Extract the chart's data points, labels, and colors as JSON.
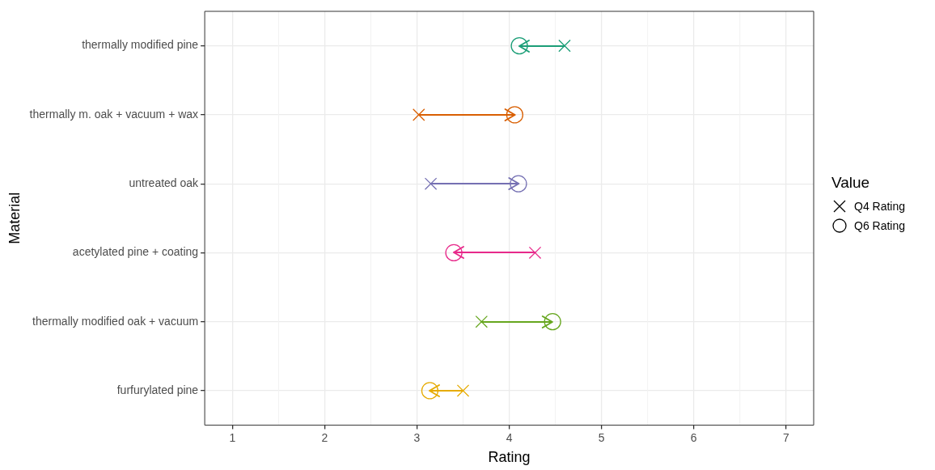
{
  "chart_data": {
    "type": "scatter",
    "orientation": "horizontal",
    "xlabel": "Rating",
    "ylabel": "Material",
    "legend_title": "Value",
    "legend": "right",
    "grid": true,
    "categories": [
      "thermally modified pine",
      "thermally m. oak + vacuum + wax",
      "untreated oak",
      "acetylated pine + coating",
      "thermally modified oak + vacuum",
      "furfurylated pine"
    ],
    "xlim": [
      0.7,
      7.3
    ],
    "xticks": [
      1,
      2,
      3,
      4,
      5,
      6,
      7
    ],
    "series": [
      {
        "name": "Q4 Rating",
        "marker": "cross",
        "colors": [
          "#1b9e77",
          "#d95f02",
          "#7570b3",
          "#e7298a",
          "#66a61e",
          "#e6ab02"
        ],
        "values": [
          4.6,
          3.02,
          3.15,
          4.28,
          3.7,
          3.5
        ]
      },
      {
        "name": "Q6 Rating",
        "marker": "circle",
        "colors": [
          "#1b9e77",
          "#d95f02",
          "#7570b3",
          "#e7298a",
          "#66a61e",
          "#e6ab02"
        ],
        "values": [
          4.11,
          4.06,
          4.1,
          3.4,
          4.47,
          3.14
        ]
      }
    ]
  }
}
